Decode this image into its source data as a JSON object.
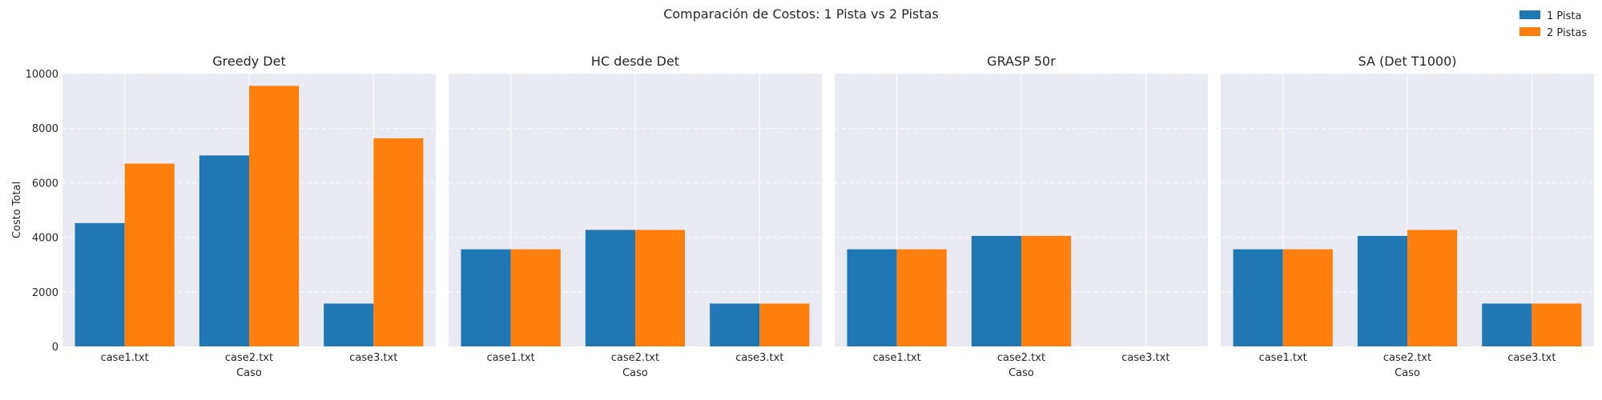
{
  "figure": {
    "title": "Comparación de Costos: 1 Pista vs 2 Pistas"
  },
  "colors": {
    "series1": "#1f77b4",
    "series2": "#ff7f0e",
    "plot_background": "#eaeaf2",
    "grid": "#ffffff"
  },
  "legend": {
    "placement": "top-right",
    "items": [
      "1 Pista",
      "2 Pistas"
    ]
  },
  "chart_data": [
    {
      "type": "bar",
      "title": "Greedy Det",
      "xlabel": "Caso",
      "ylabel": "Costo Total",
      "categories": [
        "case1.txt",
        "case2.txt",
        "case3.txt"
      ],
      "series": [
        {
          "name": "1 Pista",
          "values": [
            4520,
            7000,
            1570
          ]
        },
        {
          "name": "2 Pistas",
          "values": [
            6700,
            9550,
            7630
          ]
        }
      ],
      "ylim": [
        0,
        10000
      ],
      "yticks": [
        0,
        2000,
        4000,
        6000,
        8000,
        10000
      ],
      "grid": true
    },
    {
      "type": "bar",
      "title": "HC desde Det",
      "xlabel": "Caso",
      "ylabel": "",
      "categories": [
        "case1.txt",
        "case2.txt",
        "case3.txt"
      ],
      "series": [
        {
          "name": "1 Pista",
          "values": [
            3560,
            4270,
            1570
          ]
        },
        {
          "name": "2 Pistas",
          "values": [
            3560,
            4270,
            1570
          ]
        }
      ],
      "ylim": [
        0,
        10000
      ],
      "grid": true
    },
    {
      "type": "bar",
      "title": "GRASP 50r",
      "xlabel": "Caso",
      "ylabel": "",
      "categories": [
        "case1.txt",
        "case2.txt",
        "case3.txt"
      ],
      "series": [
        {
          "name": "1 Pista",
          "values": [
            3560,
            4050,
            null
          ]
        },
        {
          "name": "2 Pistas",
          "values": [
            3560,
            4050,
            null
          ]
        }
      ],
      "ylim": [
        0,
        10000
      ],
      "grid": true
    },
    {
      "type": "bar",
      "title": "SA (Det T1000)",
      "xlabel": "Caso",
      "ylabel": "",
      "categories": [
        "case1.txt",
        "case2.txt",
        "case3.txt"
      ],
      "series": [
        {
          "name": "1 Pista",
          "values": [
            3560,
            4050,
            1570
          ]
        },
        {
          "name": "2 Pistas",
          "values": [
            3560,
            4270,
            1570
          ]
        }
      ],
      "ylim": [
        0,
        10000
      ],
      "grid": true
    }
  ]
}
